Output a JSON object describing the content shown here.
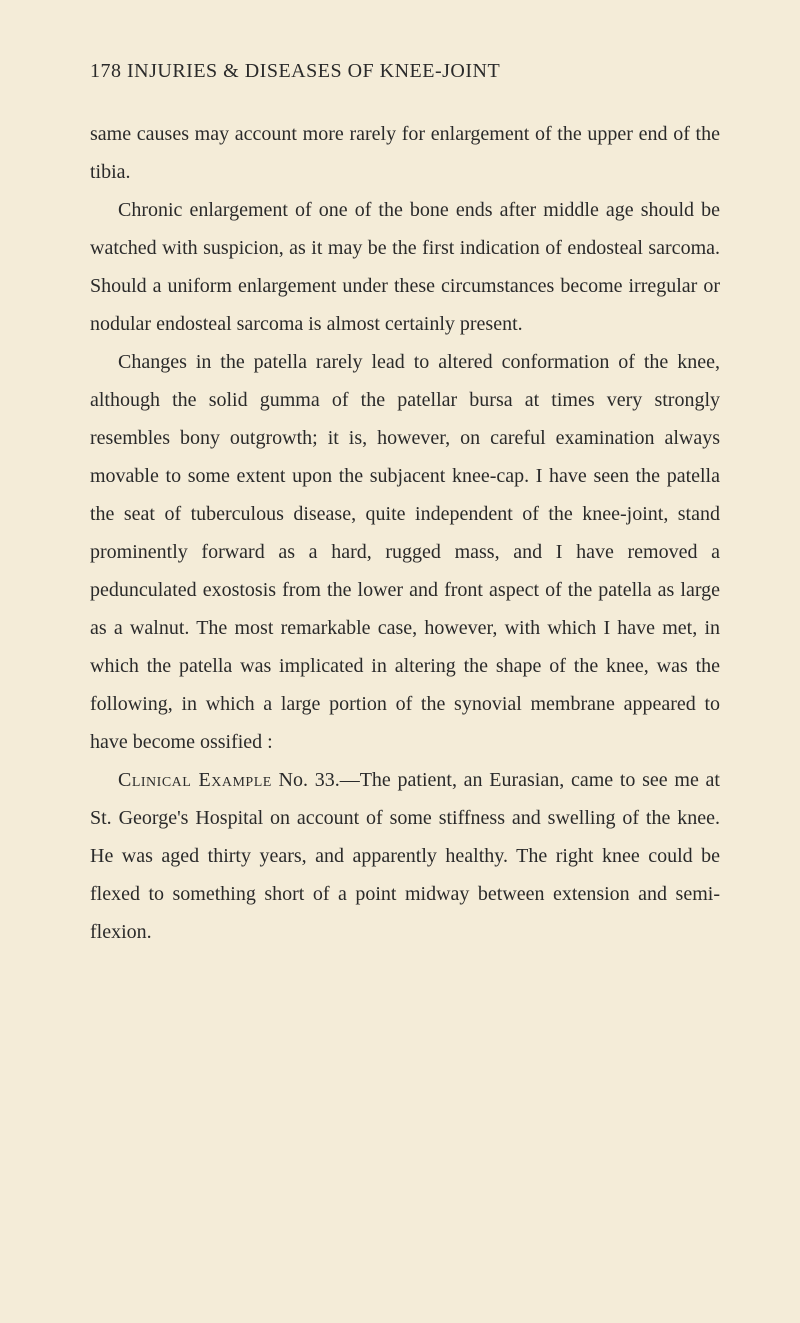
{
  "header": "178 INJURIES & DISEASES OF KNEE-JOINT",
  "para1": "same causes may account more rarely for enlargement of the upper end of the tibia.",
  "para2": "Chronic enlargement of one of the bone ends after middle age should be watched with suspicion, as it may be the first indication of endosteal sarcoma. Should a uniform enlargement under these circumstances become irregular or nodular endosteal sarcoma is almost certainly present.",
  "para3": "Changes in the patella rarely lead to altered conformation of the knee, although the solid gumma of the patellar bursa at times very strongly resembles bony outgrowth; it is, however, on careful examination always movable to some extent upon the subjacent knee-cap. I have seen the patella the seat of tuberculous disease, quite independent of the knee-joint, stand prominently forward as a hard, rugged mass, and I have removed a pedunculated exostosis from the lower and front aspect of the patella as large as a walnut. The most remarkable case, however, with which I have met, in which the patella was implicated in altering the shape of the knee, was the following, in which a large portion of the synovial membrane appeared to have become ossified :",
  "para4_label": "Clinical Example",
  "para4_rest": " No. 33.—The patient, an Eurasian, came to see me at St. George's Hospital on account of some stiffness and swelling of the knee. He was aged thirty years, and apparently healthy. The right knee could be flexed to something short of a point midway between extension and semi-flexion."
}
